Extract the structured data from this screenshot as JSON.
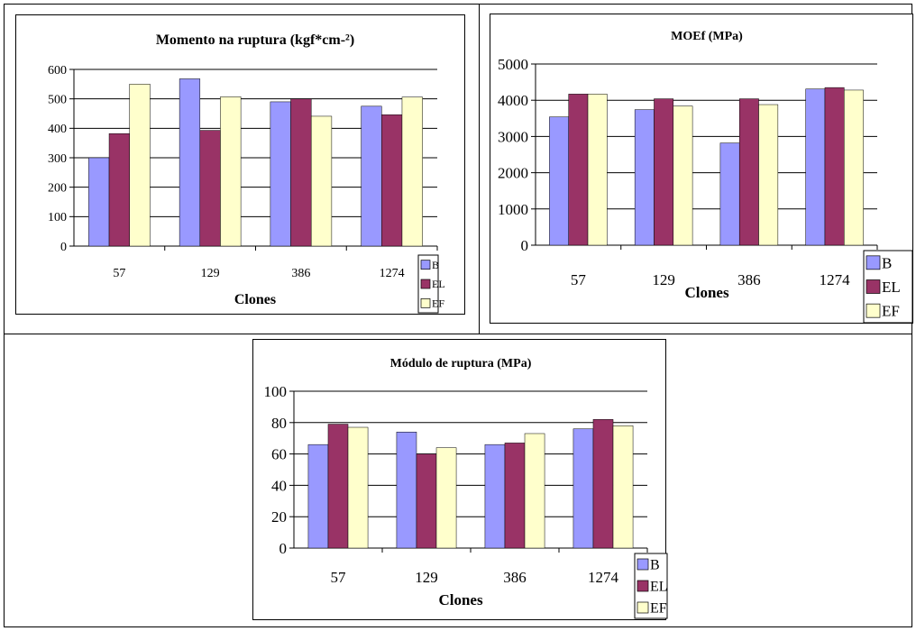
{
  "colors": {
    "B": "#9999ff",
    "EL": "#993366",
    "EF": "#ffffcc",
    "grid": "#000000"
  },
  "chart_data": [
    {
      "type": "bar",
      "title": "Momento na ruptura (kgf*cm-²)",
      "xlabel": "Clones",
      "ylabel": "",
      "categories": [
        "57",
        "129",
        "386",
        "1274"
      ],
      "series": [
        {
          "name": "B",
          "values": [
            300,
            568,
            490,
            475
          ]
        },
        {
          "name": "EL",
          "values": [
            382,
            393,
            500,
            446
          ]
        },
        {
          "name": "EF",
          "values": [
            550,
            507,
            441,
            506
          ]
        }
      ],
      "ylim": [
        0,
        600
      ],
      "yticks": [
        "0",
        "100",
        "200",
        "300",
        "400",
        "500",
        "600"
      ],
      "grid": true,
      "legend": "right"
    },
    {
      "type": "bar",
      "title": "MOEf (MPa)",
      "xlabel": "Clones",
      "ylabel": "",
      "categories": [
        "57",
        "129",
        "386",
        "1274"
      ],
      "series": [
        {
          "name": "B",
          "values": [
            3540,
            3740,
            2820,
            4310
          ]
        },
        {
          "name": "EL",
          "values": [
            4170,
            4040,
            4040,
            4350
          ]
        },
        {
          "name": "EF",
          "values": [
            4170,
            3840,
            3880,
            4280
          ]
        }
      ],
      "ylim": [
        0,
        5000
      ],
      "yticks": [
        "0",
        "1000",
        "2000",
        "3000",
        "4000",
        "5000"
      ],
      "grid": true,
      "legend": "right"
    },
    {
      "type": "bar",
      "title": "Módulo de ruptura (MPa)",
      "xlabel": "Clones",
      "ylabel": "",
      "categories": [
        "57",
        "129",
        "386",
        "1274"
      ],
      "series": [
        {
          "name": "B",
          "values": [
            66,
            74,
            66,
            76
          ]
        },
        {
          "name": "EL",
          "values": [
            79,
            60,
            67,
            82
          ]
        },
        {
          "name": "EF",
          "values": [
            77,
            64,
            73,
            78
          ]
        }
      ],
      "ylim": [
        0,
        100
      ],
      "yticks": [
        "0",
        "20",
        "40",
        "60",
        "80",
        "100"
      ],
      "grid": true,
      "legend": "right"
    }
  ]
}
